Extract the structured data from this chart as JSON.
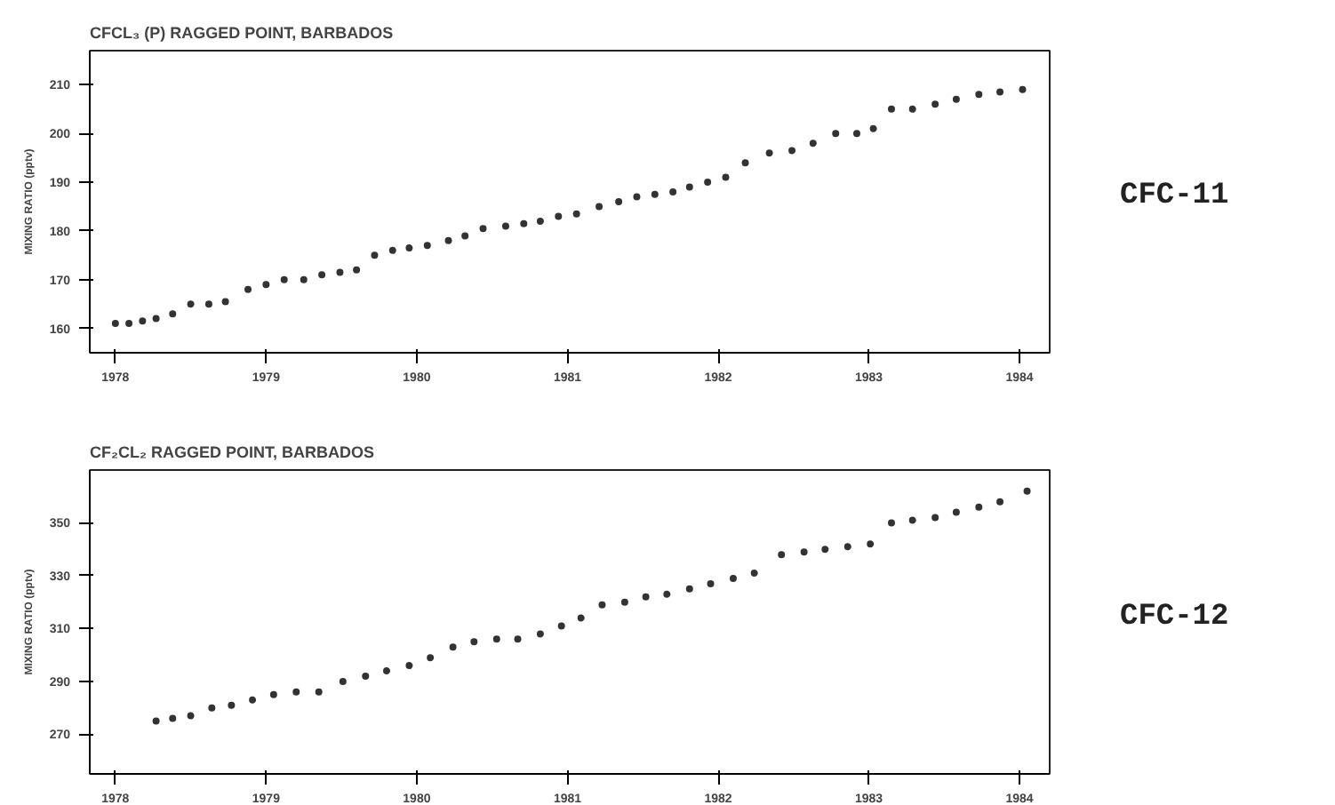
{
  "chart_data": [
    {
      "type": "scatter",
      "title": "CFCL₃ (P) RAGGED POINT, BARBADOS",
      "ylabel": "MIXING RATIO (pptv)",
      "marker": "circle",
      "grid": false,
      "color": "#333333",
      "x": [
        1978.5,
        1978.59,
        1978.68,
        1978.77,
        1978.88,
        1979.0,
        1979.12,
        1979.23,
        1979.38,
        1979.5,
        1979.62,
        1979.75,
        1979.87,
        1979.99,
        1980.1,
        1980.22,
        1980.34,
        1980.45,
        1980.57,
        1980.71,
        1980.82,
        1980.94,
        1981.09,
        1981.21,
        1981.32,
        1981.44,
        1981.56,
        1981.71,
        1981.84,
        1981.96,
        1982.08,
        1982.2,
        1982.31,
        1982.43,
        1982.55,
        1982.68,
        1982.84,
        1982.99,
        1983.13,
        1983.28,
        1983.42,
        1983.53,
        1983.65,
        1983.79,
        1983.94,
        1984.08,
        1984.23,
        1984.37,
        1984.52
      ],
      "values": [
        161,
        161,
        161.5,
        162,
        163,
        165,
        165,
        165.5,
        168,
        169,
        170,
        170,
        171,
        171.5,
        172,
        175,
        176,
        176.5,
        177,
        178,
        179,
        180.5,
        181,
        181.5,
        182,
        183,
        183.5,
        185,
        186,
        187,
        187.5,
        188,
        189,
        190,
        191,
        194,
        196,
        196.5,
        198,
        200,
        200,
        201,
        205,
        205,
        206,
        207,
        208,
        208.5,
        209
      ],
      "xlim": [
        1978.33,
        1984.7
      ],
      "xticks": [
        {
          "value": 1978.5,
          "label": "1978"
        },
        {
          "value": 1979.5,
          "label": "1979"
        },
        {
          "value": 1980.5,
          "label": "1980"
        },
        {
          "value": 1981.5,
          "label": "1981"
        },
        {
          "value": 1982.5,
          "label": "1982"
        },
        {
          "value": 1983.5,
          "label": "1983"
        },
        {
          "value": 1984.5,
          "label": "1984"
        }
      ],
      "ylim": [
        155,
        217
      ],
      "yticks": [
        160,
        170,
        180,
        190,
        200,
        210
      ],
      "annotations": [
        "CFC-11"
      ]
    },
    {
      "type": "scatter",
      "title": "CF₂CL₂ RAGGED POINT, BARBADOS",
      "ylabel": "MIXING RATIO (pptv)",
      "marker": "circle",
      "grid": false,
      "color": "#333333",
      "x": [
        1978.77,
        1978.88,
        1979.0,
        1979.14,
        1979.27,
        1979.41,
        1979.55,
        1979.7,
        1979.85,
        1980.01,
        1980.16,
        1980.3,
        1980.45,
        1980.59,
        1980.74,
        1980.88,
        1981.03,
        1981.17,
        1981.32,
        1981.46,
        1981.59,
        1981.73,
        1981.88,
        1982.02,
        1982.16,
        1982.31,
        1982.45,
        1982.6,
        1982.74,
        1982.92,
        1983.07,
        1983.21,
        1983.36,
        1983.51,
        1983.65,
        1983.79,
        1983.94,
        1984.08,
        1984.23,
        1984.37,
        1984.55
      ],
      "values": [
        275,
        276,
        277,
        280,
        281,
        283,
        285,
        286,
        286,
        290,
        292,
        294,
        296,
        299,
        303,
        305,
        306,
        306,
        308,
        311,
        314,
        319,
        320,
        322,
        323,
        325,
        327,
        329,
        331,
        338,
        339,
        340,
        341,
        342,
        350,
        351,
        352,
        354,
        356,
        358,
        362
      ],
      "xlim": [
        1978.33,
        1984.7
      ],
      "xticks": [
        {
          "value": 1978.5,
          "label": "1978"
        },
        {
          "value": 1979.5,
          "label": "1979"
        },
        {
          "value": 1980.5,
          "label": "1980"
        },
        {
          "value": 1981.5,
          "label": "1981"
        },
        {
          "value": 1982.5,
          "label": "1982"
        },
        {
          "value": 1983.5,
          "label": "1983"
        },
        {
          "value": 1984.5,
          "label": "1984"
        }
      ],
      "ylim": [
        255,
        370
      ],
      "yticks": [
        270,
        290,
        310,
        330,
        350
      ],
      "annotations": [
        "CFC-12"
      ]
    }
  ]
}
